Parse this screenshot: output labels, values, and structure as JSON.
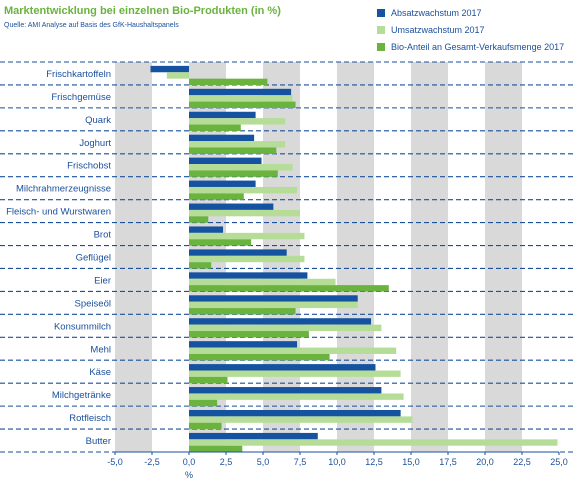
{
  "header": {
    "title": "Marktentwicklung bei einzelnen Bio-Produkten (in %)",
    "source": "Quelle: AMI Analyse auf Basis des GfK-Haushaltspanels"
  },
  "colors": {
    "absatz": "#1553a0",
    "umsatz": "#b5dd98",
    "anteil": "#6ab33e",
    "band": "#d9d9d9",
    "dash": "#1a4f9c",
    "text": "#1a4f9c"
  },
  "chart_data": {
    "type": "bar",
    "orientation": "horizontal",
    "title": "Marktentwicklung bei einzelnen Bio-Produkten (in %)",
    "xlabel": "%",
    "ylabel": "",
    "xlim": [
      -5,
      25
    ],
    "x_ticks": [
      "-5,0",
      "-2,5",
      "0,0",
      "2,5",
      "5,0",
      "7,5",
      "10,0",
      "12,5",
      "15,0",
      "17,5",
      "20,0",
      "22,5",
      "25,0"
    ],
    "legend_position": "top-right",
    "categories": [
      "Frischkartoffeln",
      "Frischgemüse",
      "Quark",
      "Joghurt",
      "Frischobst",
      "Milchrahmerzeugnisse",
      "Fleisch- und Wurstwaren",
      "Brot",
      "Geflügel",
      "Eier",
      "Speiseöl",
      "Konsummilch",
      "Mehl",
      "Käse",
      "Milchgetränke",
      "Rotfleisch",
      "Butter"
    ],
    "series": [
      {
        "name": "Absatzwachstum 2017",
        "values": [
          -2.6,
          6.9,
          4.5,
          4.4,
          4.9,
          4.5,
          5.7,
          2.3,
          6.6,
          8.0,
          11.4,
          12.3,
          7.3,
          12.6,
          13.0,
          14.3,
          8.7
        ]
      },
      {
        "name": "Umsatzwachstum 2017",
        "values": [
          -1.5,
          7.0,
          6.5,
          6.5,
          7.0,
          7.3,
          7.5,
          7.8,
          7.8,
          9.9,
          11.4,
          13.0,
          14.0,
          14.3,
          14.5,
          15.1,
          24.9
        ]
      },
      {
        "name": "Bio-Anteil an Gesamt-Verkaufsmenge 2017",
        "values": [
          5.3,
          7.2,
          3.5,
          5.9,
          6.0,
          3.7,
          1.3,
          4.2,
          1.5,
          13.5,
          7.2,
          8.1,
          9.5,
          2.6,
          1.9,
          2.2,
          3.6
        ]
      }
    ]
  }
}
